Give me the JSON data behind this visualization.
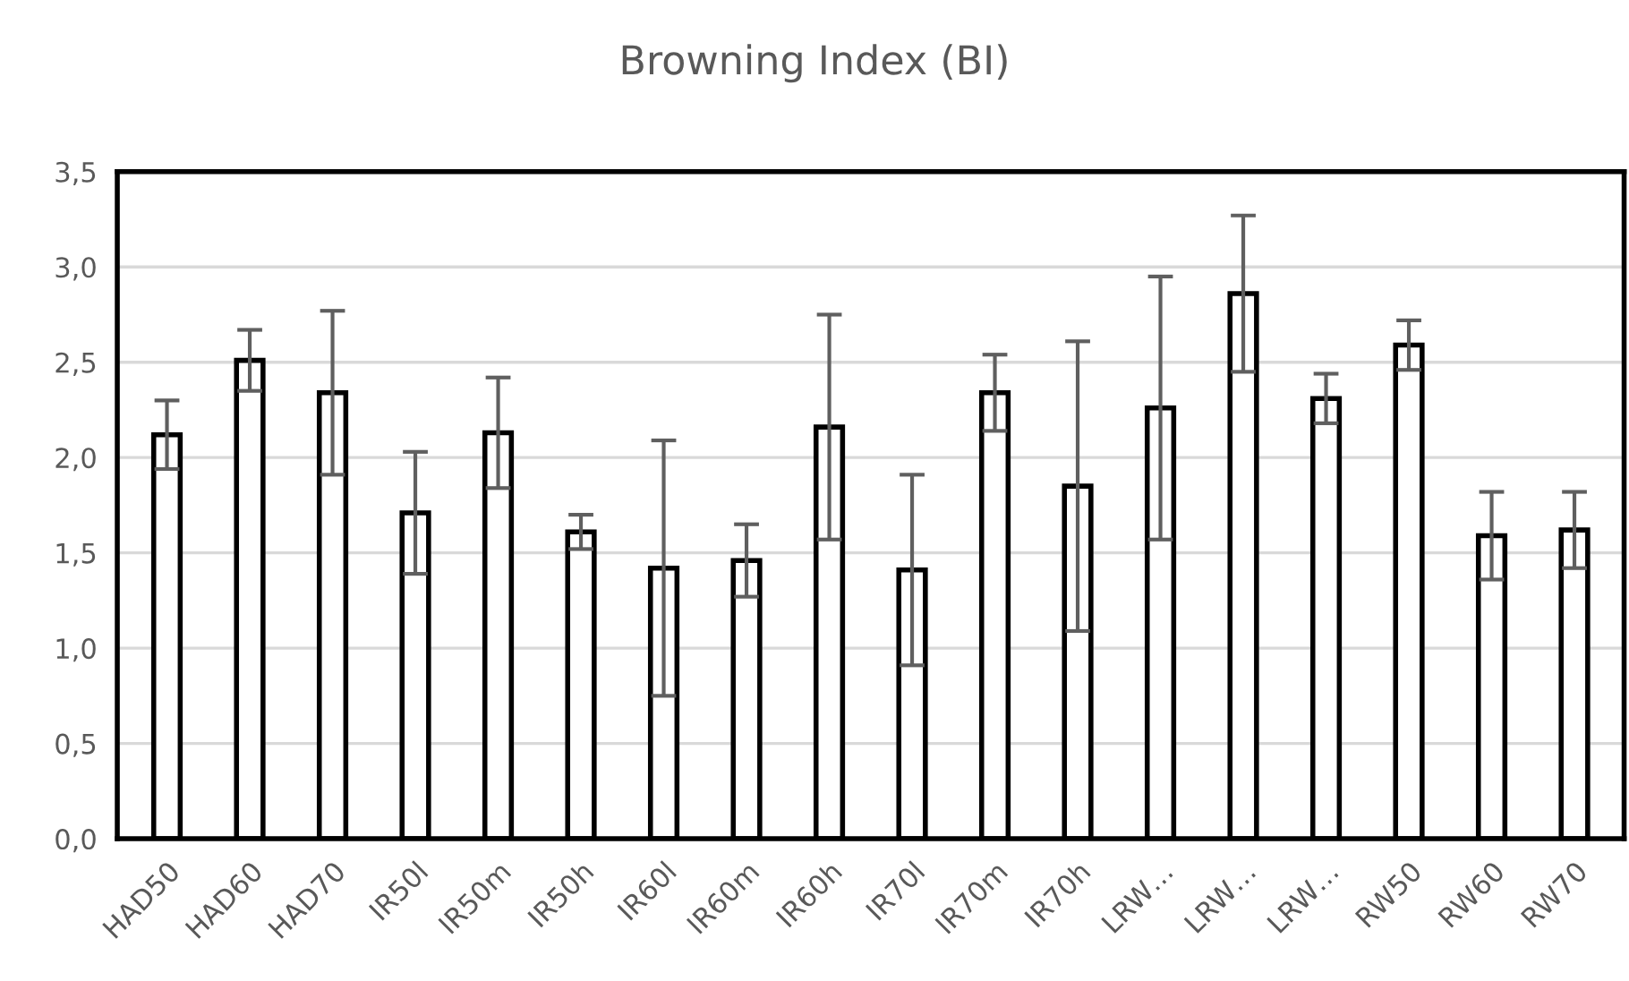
{
  "chart_data": {
    "type": "bar",
    "title": "Browning Index (BI)",
    "categories": [
      "HAD50",
      "HAD60",
      "HAD70",
      "IR50l",
      "IR50m",
      "IR50h",
      "IR60l",
      "IR60m",
      "IR60h",
      "IR70l",
      "IR70m",
      "IR70h",
      "LRW…",
      "LRW…",
      "LRW…",
      "RW50",
      "RW60",
      "RW70"
    ],
    "series": [
      {
        "color": "#ffffff",
        "values": [
          2.12,
          2.51,
          2.34,
          1.71,
          2.13,
          1.61,
          1.42,
          1.46,
          2.16,
          1.41,
          2.34,
          1.85,
          2.26,
          2.86,
          2.31,
          2.59,
          1.59,
          1.62
        ],
        "errors": [
          0.18,
          0.16,
          0.43,
          0.32,
          0.29,
          0.09,
          0.67,
          0.19,
          0.59,
          0.5,
          0.2,
          0.76,
          0.69,
          0.41,
          0.13,
          0.13,
          0.23,
          0.2
        ]
      }
    ],
    "ylim": [
      0,
      3.5
    ],
    "yticks": [
      {
        "value": 0,
        "label": "0,0"
      },
      {
        "value": 0.5,
        "label": "0,5"
      },
      {
        "value": 1,
        "label": "1,0"
      },
      {
        "value": 1.5,
        "label": "1,5"
      },
      {
        "value": 2,
        "label": "2,0"
      },
      {
        "value": 2.5,
        "label": "2,5"
      },
      {
        "value": 3,
        "label": "3,0"
      },
      {
        "value": 3.5,
        "label": "3,5"
      }
    ],
    "grid": "y",
    "legend": false
  }
}
